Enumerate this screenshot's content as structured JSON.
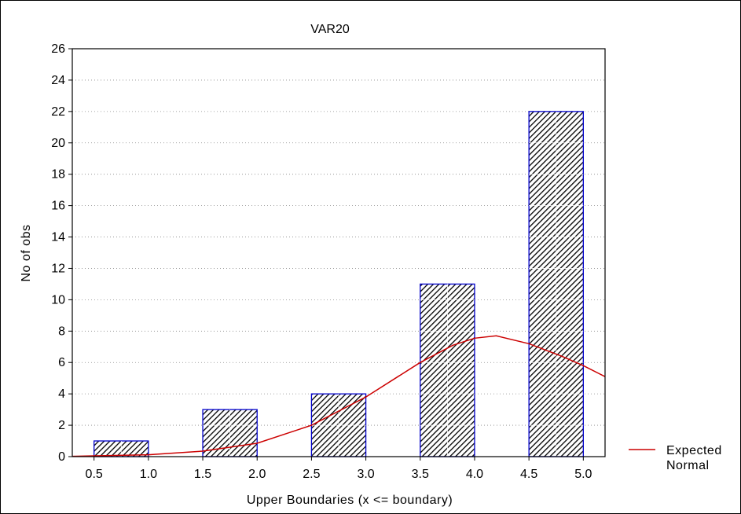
{
  "chart_data": {
    "type": "bar",
    "title": "VAR20",
    "xlabel": "Upper Boundaries (x <= boundary)",
    "ylabel": "No of obs",
    "x_ticks": [
      "0.5",
      "1.0",
      "1.5",
      "2.0",
      "2.5",
      "3.0",
      "3.5",
      "4.0",
      "4.5",
      "5.0"
    ],
    "xlim": [
      0.3,
      5.2
    ],
    "ylim": [
      0,
      26
    ],
    "y_ticks": [
      0,
      2,
      4,
      6,
      8,
      10,
      12,
      14,
      16,
      18,
      20,
      22,
      24,
      26
    ],
    "grid": true,
    "bars": [
      {
        "from": 0.5,
        "to": 1.0,
        "value": 1
      },
      {
        "from": 1.5,
        "to": 2.0,
        "value": 3
      },
      {
        "from": 2.5,
        "to": 3.0,
        "value": 4
      },
      {
        "from": 3.5,
        "to": 4.0,
        "value": 11
      },
      {
        "from": 4.5,
        "to": 5.0,
        "value": 22
      }
    ],
    "curve": {
      "name_line1": "Expected",
      "name_line2": "Normal",
      "x": [
        0.3,
        0.5,
        1.0,
        1.5,
        2.0,
        2.5,
        3.0,
        3.5,
        3.8,
        4.0,
        4.2,
        4.5,
        4.8,
        5.0,
        5.2
      ],
      "y": [
        0.02,
        0.05,
        0.12,
        0.35,
        0.85,
        2.0,
        3.8,
        6.0,
        7.1,
        7.55,
        7.7,
        7.2,
        6.4,
        5.8,
        5.1
      ]
    },
    "legend_position": "right",
    "colors": {
      "bar_edge": "#0000cc",
      "bar_hatch": "#000000",
      "curve": "#cc0000",
      "grid": "#888888"
    }
  }
}
